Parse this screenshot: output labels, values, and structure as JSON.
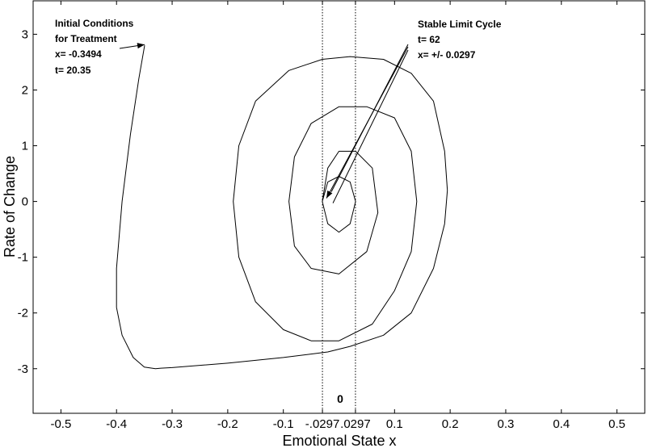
{
  "chart_data": {
    "type": "line",
    "xlabel": "Emotional State x",
    "ylabel": "Rate of Change",
    "xlim": [
      -0.55,
      0.55
    ],
    "ylim": [
      -3.8,
      3.6
    ],
    "x_ticks": [
      "-0.5",
      "-0.4",
      "-0.3",
      "-0.2",
      "-0.1",
      "-.0297",
      ".0297",
      "0.1",
      "0.2",
      "0.3",
      "0.4",
      "0.5"
    ],
    "x_tick_values": [
      -0.5,
      -0.4,
      -0.3,
      -0.2,
      -0.1,
      -0.0297,
      0.0297,
      0.1,
      0.2,
      0.3,
      0.4,
      0.5
    ],
    "y_ticks": [
      "-3",
      "-2",
      "-1",
      "0",
      "1",
      "2",
      "3"
    ],
    "y_tick_values": [
      -3,
      -2,
      -1,
      0,
      1,
      2,
      3
    ],
    "zero_label": "0",
    "reference_lines_x": [
      -0.0297,
      0.0297
    ],
    "grid": false,
    "series": [
      {
        "x": [
          -0.3494,
          -0.36,
          -0.375,
          -0.39,
          -0.4,
          -0.4,
          -0.39,
          -0.37,
          -0.35,
          -0.33,
          -0.32,
          -0.3,
          -0.2,
          -0.1,
          -0.02,
          0.02,
          0.08,
          0.13,
          0.17,
          0.19,
          0.195,
          0.19,
          0.17,
          0.13,
          0.08,
          0.02,
          -0.03,
          -0.09,
          -0.15,
          -0.18,
          -0.19,
          -0.18,
          -0.15,
          -0.1,
          -0.05,
          0,
          0.06,
          0.1,
          0.13,
          0.14,
          0.13,
          0.1,
          0.05,
          0,
          -0.05,
          -0.08,
          -0.09,
          -0.08,
          -0.05,
          0,
          0.05,
          0.07,
          0.06,
          0.03,
          0,
          -0.02,
          -0.03,
          -0.02,
          0,
          0.02,
          0.03,
          0.02,
          0,
          -0.02,
          -0.03
        ],
        "y": [
          2.8,
          2.2,
          1.2,
          0,
          -1.2,
          -1.9,
          -2.4,
          -2.8,
          -2.97,
          -3.0,
          -2.99,
          -2.98,
          -2.9,
          -2.8,
          -2.7,
          -2.6,
          -2.4,
          -2.0,
          -1.2,
          -0.4,
          0.2,
          0.9,
          1.8,
          2.3,
          2.55,
          2.6,
          2.55,
          2.35,
          1.8,
          1.0,
          0.0,
          -1.0,
          -1.8,
          -2.3,
          -2.5,
          -2.5,
          -2.2,
          -1.6,
          -0.9,
          0,
          0.9,
          1.5,
          1.7,
          1.7,
          1.4,
          0.8,
          0,
          -0.8,
          -1.2,
          -1.3,
          -0.9,
          -0.2,
          0.6,
          0.9,
          0.9,
          0.6,
          0,
          -0.4,
          -0.55,
          -0.4,
          0,
          0.35,
          0.45,
          0.35,
          0
        ]
      }
    ],
    "annotations": [
      {
        "lines": [
          "Initial Conditions",
          "for Treatment",
          "x= -0.3494",
          "t= 20.35"
        ],
        "points_to": [
          -0.3494,
          2.8
        ]
      },
      {
        "lines": [
          "Stable Limit Cycle",
          "t= 62",
          "x= +/- 0.0297"
        ],
        "points_to": [
          -0.0297,
          0.0
        ]
      }
    ]
  }
}
